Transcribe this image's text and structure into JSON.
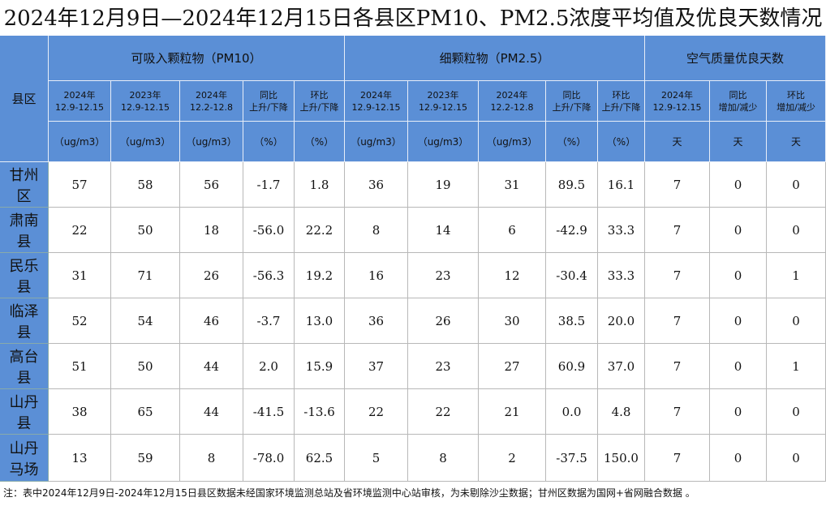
{
  "title": "2024年12月9日—2024年12月15日各县区PM10、PM2.5浓度平均值及优良天数情况",
  "table": {
    "region_header": "县区",
    "group_headers": [
      "可吸入颗粒物（PM10）",
      "细颗粒物（PM2.5）",
      "空气质量优良天数"
    ],
    "sub_headers": [
      [
        "2024年",
        "12.9-12.15"
      ],
      [
        "2023年",
        "12.9-12.15"
      ],
      [
        "2024年",
        "12.2-12.8"
      ],
      [
        "同比",
        "上升/下降"
      ],
      [
        "环比",
        "上升/下降"
      ],
      [
        "2024年",
        "12.9-12.15"
      ],
      [
        "2023年",
        "12.9-12.15"
      ],
      [
        "2024年",
        "12.2-12.8"
      ],
      [
        "同比",
        "上升/下降"
      ],
      [
        "环比",
        "上升/下降"
      ],
      [
        "2024年",
        "12.9-12.15"
      ],
      [
        "同比",
        "增加/减少"
      ],
      [
        "环比",
        "增加/减少"
      ]
    ],
    "units": [
      "（ug/m3）",
      "（ug/m3）",
      "（ug/m3）",
      "（%）",
      "（%）",
      "（ug/m3）",
      "（ug/m3）",
      "（ug/m3）",
      "（%）",
      "（%）",
      "天",
      "天",
      "天"
    ],
    "rows": [
      [
        "甘州区",
        "57",
        "58",
        "56",
        "-1.7",
        "1.8",
        "36",
        "19",
        "31",
        "89.5",
        "16.1",
        "7",
        "0",
        "0"
      ],
      [
        "肃南县",
        "22",
        "50",
        "18",
        "-56.0",
        "22.2",
        "8",
        "14",
        "6",
        "-42.9",
        "33.3",
        "7",
        "0",
        "0"
      ],
      [
        "民乐县",
        "31",
        "71",
        "26",
        "-56.3",
        "19.2",
        "16",
        "23",
        "12",
        "-30.4",
        "33.3",
        "7",
        "0",
        "1"
      ],
      [
        "临泽县",
        "52",
        "54",
        "46",
        "-3.7",
        "13.0",
        "36",
        "26",
        "30",
        "38.5",
        "20.0",
        "7",
        "0",
        "0"
      ],
      [
        "高台县",
        "51",
        "50",
        "44",
        "2.0",
        "15.9",
        "37",
        "23",
        "27",
        "60.9",
        "37.0",
        "7",
        "0",
        "1"
      ],
      [
        "山丹县",
        "38",
        "65",
        "44",
        "-41.5",
        "-13.6",
        "22",
        "22",
        "21",
        "0.0",
        "4.8",
        "7",
        "0",
        "0"
      ],
      [
        "山丹马场",
        "13",
        "59",
        "8",
        "-78.0",
        "62.5",
        "5",
        "8",
        "2",
        "-37.5",
        "150.0",
        "7",
        "0",
        "0"
      ]
    ]
  },
  "note": "注：表中2024年12月9日-2024年12月15日县区数据未经国家环境监测总站及省环境监测中心站审核，为未剔除沙尘数据；甘州区数据为国网+省网融合数据 。"
}
